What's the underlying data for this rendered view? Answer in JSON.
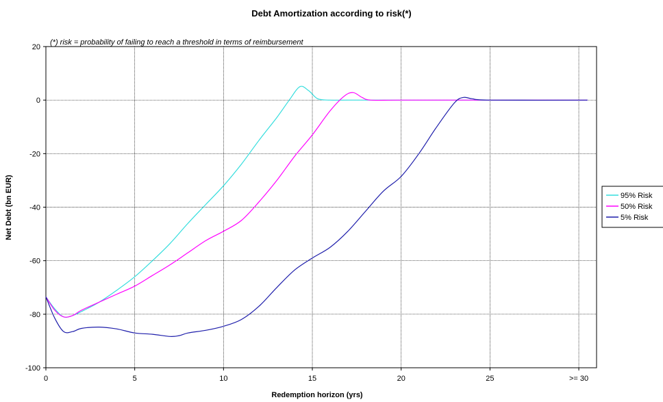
{
  "chart_data": {
    "type": "line",
    "title": "Debt Amortization according to risk(*)",
    "annotation": "(*) risk = probability of failing to reach a threshold in terms of reimbursement",
    "xlabel": "Redemption horizon (yrs)",
    "ylabel": "Net Debt (bn EUR)",
    "xlim": [
      0,
      31
    ],
    "ylim": [
      -100,
      20
    ],
    "x_ticks": [
      {
        "value": 0,
        "label": "0"
      },
      {
        "value": 5,
        "label": "5"
      },
      {
        "value": 10,
        "label": "10"
      },
      {
        "value": 15,
        "label": "15"
      },
      {
        "value": 20,
        "label": "20"
      },
      {
        "value": 25,
        "label": "25"
      },
      {
        "value": 30,
        "label": ">= 30"
      }
    ],
    "y_ticks": [
      20,
      0,
      -20,
      -40,
      -60,
      -80,
      -100
    ],
    "grid": true,
    "legend_position": "right",
    "series": [
      {
        "name": "95% Risk",
        "color": "#33dddd",
        "points": [
          [
            0,
            -73.5
          ],
          [
            0.5,
            -78
          ],
          [
            1,
            -81
          ],
          [
            1.5,
            -80.5
          ],
          [
            2,
            -79
          ],
          [
            3,
            -75.5
          ],
          [
            4,
            -71
          ],
          [
            5,
            -66
          ],
          [
            6,
            -60
          ],
          [
            7,
            -53.5
          ],
          [
            8,
            -46
          ],
          [
            9,
            -39
          ],
          [
            10,
            -32
          ],
          [
            11,
            -24
          ],
          [
            12,
            -15
          ],
          [
            13,
            -6.5
          ],
          [
            13.7,
            0
          ],
          [
            14.3,
            5
          ],
          [
            14.8,
            3.5
          ],
          [
            15.3,
            0.5
          ],
          [
            16,
            0
          ],
          [
            17,
            0
          ],
          [
            20,
            0
          ],
          [
            25,
            0
          ],
          [
            30.5,
            0
          ]
        ]
      },
      {
        "name": "50% Risk",
        "color": "#ff00ff",
        "points": [
          [
            0,
            -73.5
          ],
          [
            0.5,
            -78.5
          ],
          [
            1,
            -81
          ],
          [
            1.5,
            -80.5
          ],
          [
            2,
            -78.5
          ],
          [
            3,
            -75.5
          ],
          [
            4,
            -72.5
          ],
          [
            5,
            -69.5
          ],
          [
            6,
            -65.5
          ],
          [
            7,
            -61.5
          ],
          [
            8,
            -57
          ],
          [
            9,
            -52.5
          ],
          [
            10,
            -49
          ],
          [
            11,
            -45
          ],
          [
            12,
            -38
          ],
          [
            13,
            -30
          ],
          [
            14,
            -21
          ],
          [
            15,
            -13
          ],
          [
            16,
            -4
          ],
          [
            16.8,
            1.5
          ],
          [
            17.3,
            2.8
          ],
          [
            17.8,
            1
          ],
          [
            18.3,
            0
          ],
          [
            20,
            0
          ],
          [
            25,
            0
          ],
          [
            30.5,
            0
          ]
        ]
      },
      {
        "name": "5% Risk",
        "color": "#1c1caa",
        "points": [
          [
            0,
            -73.5
          ],
          [
            0.5,
            -81.5
          ],
          [
            1,
            -86.5
          ],
          [
            1.5,
            -86.5
          ],
          [
            2,
            -85.3
          ],
          [
            3,
            -84.8
          ],
          [
            4,
            -85.5
          ],
          [
            5,
            -87
          ],
          [
            6,
            -87.5
          ],
          [
            7,
            -88.3
          ],
          [
            7.5,
            -88
          ],
          [
            8,
            -87
          ],
          [
            9,
            -86
          ],
          [
            10,
            -84.5
          ],
          [
            11,
            -82
          ],
          [
            12,
            -77
          ],
          [
            13,
            -70
          ],
          [
            14,
            -63.5
          ],
          [
            15,
            -59
          ],
          [
            16,
            -55
          ],
          [
            17,
            -49
          ],
          [
            18,
            -41.5
          ],
          [
            19,
            -34
          ],
          [
            20,
            -28.5
          ],
          [
            21,
            -20
          ],
          [
            22,
            -10
          ],
          [
            23,
            -1
          ],
          [
            23.5,
            1
          ],
          [
            24,
            0.5
          ],
          [
            25,
            0
          ],
          [
            30.5,
            0
          ]
        ]
      }
    ]
  }
}
